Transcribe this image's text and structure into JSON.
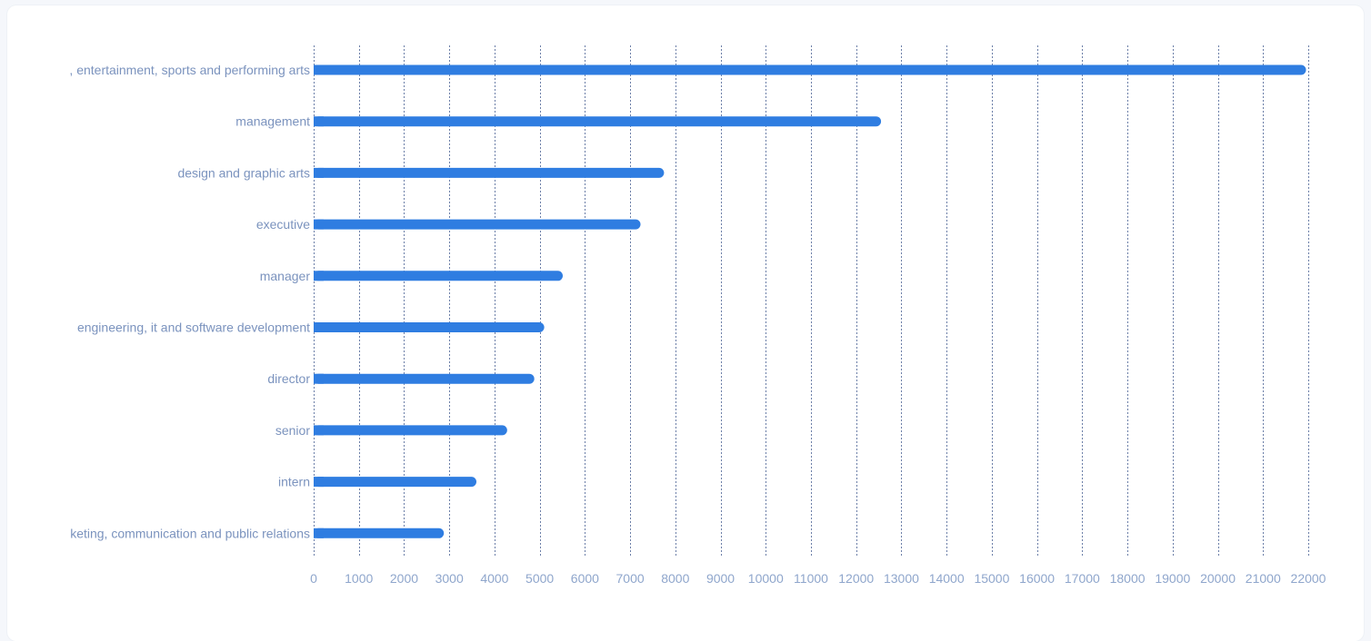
{
  "chart_data": {
    "type": "bar",
    "orientation": "horizontal",
    "categories": [
      ", entertainment, sports and performing arts",
      "management",
      "design and graphic arts",
      "executive",
      "manager",
      "engineering, it and software development",
      "director",
      "senior",
      "intern",
      "keting, communication and public relations"
    ],
    "values": [
      21950,
      12550,
      7750,
      7230,
      5510,
      5100,
      4880,
      4280,
      3600,
      2880
    ],
    "xlim": [
      0,
      22000
    ],
    "xticks": [
      "0",
      "1000",
      "2000",
      "3000",
      "4000",
      "5000",
      "6000",
      "7000",
      "8000",
      "9000",
      "10000",
      "11000",
      "12000",
      "13000",
      "14000",
      "15000",
      "16000",
      "17000",
      "18000",
      "19000",
      "20000",
      "21000",
      "22000"
    ],
    "grid": true,
    "bar_color": "#2f7de1"
  }
}
